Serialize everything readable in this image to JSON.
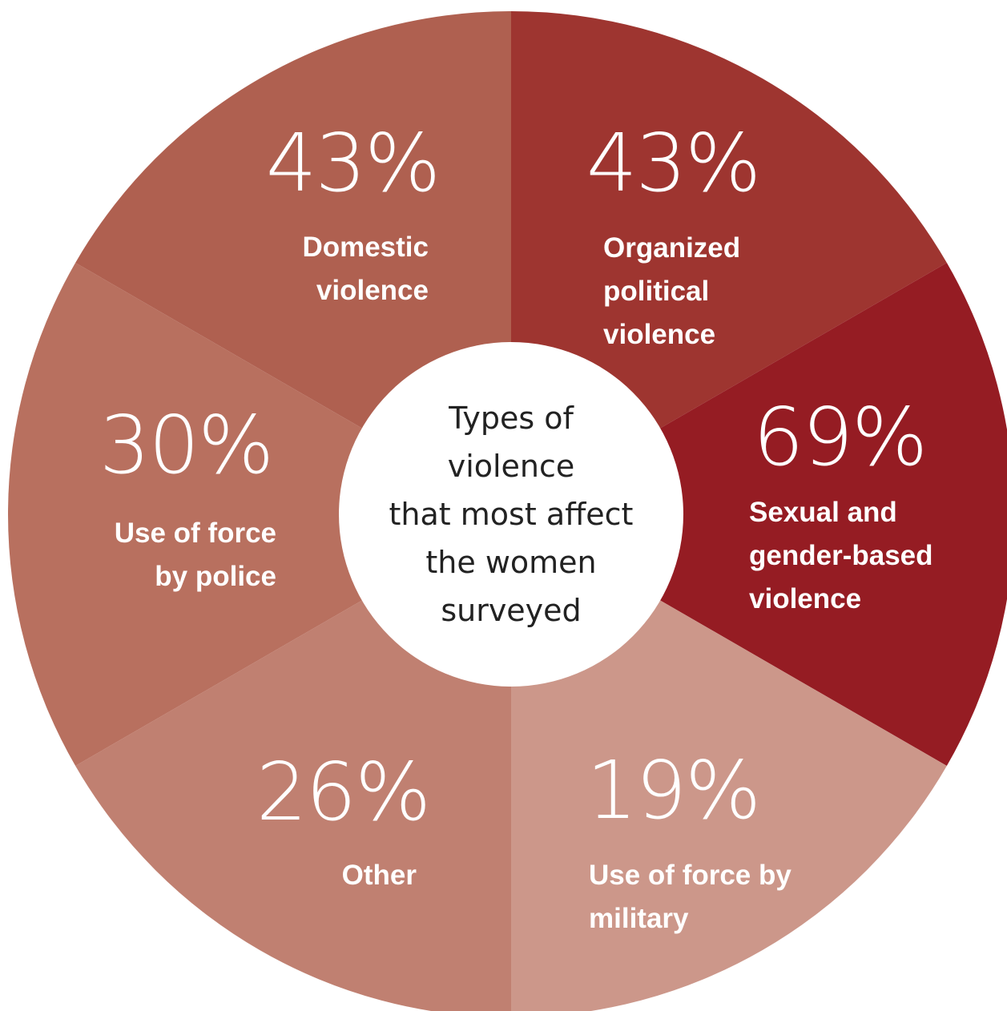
{
  "chart_data": {
    "type": "pie",
    "title": "",
    "center_label": [
      "Types of",
      "violence",
      "that most affect",
      "the women",
      "surveyed"
    ],
    "segments": [
      {
        "value_label": "43%",
        "value": 43,
        "label_lines": [
          "Organized",
          "political",
          "violence"
        ],
        "color": "#9e3530"
      },
      {
        "value_label": "69%",
        "value": 69,
        "label_lines": [
          "Sexual and",
          "gender-based",
          "violence"
        ],
        "color": "#951c23"
      },
      {
        "value_label": "19%",
        "value": 19,
        "label_lines": [
          "Use of force by",
          "military"
        ],
        "color": "#cc978a"
      },
      {
        "value_label": "26%",
        "value": 26,
        "label_lines": [
          "Other"
        ],
        "color": "#c08071"
      },
      {
        "value_label": "30%",
        "value": 30,
        "label_lines": [
          "Use of force",
          "by police"
        ],
        "color": "#b8705f"
      },
      {
        "value_label": "43%",
        "value": 43,
        "label_lines": [
          "Domestic",
          "violence"
        ],
        "color": "#af6050"
      }
    ]
  }
}
